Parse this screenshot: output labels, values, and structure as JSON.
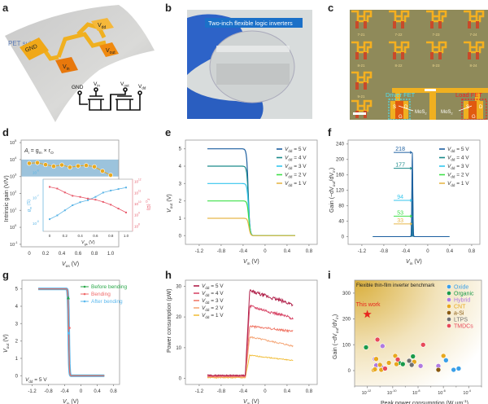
{
  "figure": {
    "panels": {
      "a": {
        "letter": "a",
        "substrate_label": "PET sub",
        "pads": [
          "GND",
          "V_in",
          "V_dd",
          "V_out"
        ],
        "circuit_terminals": [
          "GND",
          "V_in",
          "V_out",
          "V_dd"
        ]
      },
      "b": {
        "letter": "b",
        "caption": "Two-inch flexible logic inverters"
      },
      "c": {
        "letter": "c",
        "device_labels_row1": [
          "7-21",
          "7-22",
          "7-23",
          "7-24"
        ],
        "device_labels_row2": [
          "8-21",
          "8-22",
          "8-23",
          "8-24"
        ],
        "device_labels_row3": [
          "9-21"
        ],
        "driver_label": "Driver FET",
        "load_label": "Load FET",
        "material_label": "MoS2",
        "terminal_labels": [
          "S",
          "D",
          "G"
        ]
      },
      "d": {
        "letter": "d"
      },
      "e": {
        "letter": "e"
      },
      "f": {
        "letter": "f"
      },
      "g": {
        "letter": "g"
      },
      "h": {
        "letter": "h"
      },
      "i": {
        "letter": "i"
      }
    }
  },
  "chart_data": [
    {
      "id": "d",
      "type": "scatter",
      "title": "",
      "annotation": "A_i = g_m × r_O",
      "xlabel": "V_gs (V)",
      "ylabel": "Intrinsic gain (V/V)",
      "yscale": "log",
      "ylim_exp": [
        -1,
        5
      ],
      "ytick_labels": [
        "10^-1",
        "10^0",
        "10^1",
        "10^2",
        "10^3",
        "10^4",
        "10^5"
      ],
      "xlim": [
        -0.1,
        1.1
      ],
      "xtick_labels": [
        "0",
        "0.2",
        "0.4",
        "0.6",
        "0.8",
        "1.0"
      ],
      "shaded_band": [
        1000,
        10000
      ],
      "shaded_color": "#9cc3dc",
      "series": [
        {
          "name": "Intrinsic gain",
          "color": "#e8a81e",
          "x": [
            0,
            0.1,
            0.2,
            0.3,
            0.4,
            0.5,
            0.6,
            0.7,
            0.8,
            0.9,
            1.0
          ],
          "y": [
            6000,
            6500,
            5000,
            4000,
            4800,
            3500,
            4200,
            4500,
            3800,
            2100,
            1200
          ]
        }
      ],
      "inset": {
        "xlabel": "V_gs (V)",
        "xtick_labels": [
          "0",
          "0.2",
          "0.4",
          "0.6",
          "0.8",
          "1.0"
        ],
        "left_ylabel": "g_m (S)",
        "left_ytick_labels": [
          "10^-8",
          "10^-7",
          "10^-6"
        ],
        "right_ylabel": "r_O (Ω)",
        "right_ytick_labels": [
          "10^8",
          "10^9",
          "10^10",
          "10^11",
          "10^12"
        ],
        "series": [
          {
            "name": "g_m",
            "color": "#5ab4e6",
            "axis": "left",
            "x": [
              0,
              0.1,
              0.2,
              0.3,
              0.4,
              0.5,
              0.6,
              0.7,
              0.8,
              0.9,
              1.0
            ],
            "y_exp": [
              -7.85,
              -7.7,
              -7.5,
              -7.3,
              -7.18,
              -7.1,
              -6.97,
              -6.8,
              -6.72,
              -6.66,
              -6.6
            ]
          },
          {
            "name": "r_O",
            "color": "#e8596a",
            "axis": "right",
            "x": [
              0,
              0.1,
              0.2,
              0.3,
              0.4,
              0.5,
              0.6,
              0.7,
              0.8,
              0.9,
              1.0
            ],
            "y_exp": [
              11.5,
              11.35,
              11.0,
              10.7,
              10.6,
              10.45,
              10.35,
              10.15,
              9.9,
              9.55,
              9.2
            ]
          }
        ]
      }
    },
    {
      "id": "e",
      "type": "line",
      "xlabel": "V_in (V)",
      "ylabel": "V_out (V)",
      "xlim": [
        -1.45,
        0.95
      ],
      "ylim": [
        -0.5,
        5.5
      ],
      "xtick_labels": [
        "-1.2",
        "-0.8",
        "-0.4",
        "0",
        "0.4",
        "0.8"
      ],
      "xticks": [
        -1.2,
        -0.8,
        -0.4,
        0,
        0.4,
        0.8
      ],
      "ytick_labels": [
        "0",
        "1",
        "2",
        "3",
        "4",
        "5"
      ],
      "yticks": [
        0,
        1,
        2,
        3,
        4,
        5
      ],
      "legend_position": "top-right",
      "series": [
        {
          "name": "V_dd = 5 V",
          "color": "#1c5fa0",
          "vdd": 5
        },
        {
          "name": "V_dd = 4 V",
          "color": "#1a8a8a",
          "vdd": 4
        },
        {
          "name": "V_dd = 3 V",
          "color": "#35c6ee",
          "vdd": 3
        },
        {
          "name": "V_dd = 2 V",
          "color": "#3fe04a",
          "vdd": 2
        },
        {
          "name": "V_dd = 1 V",
          "color": "#e6b84a",
          "vdd": 1
        }
      ],
      "x_start": -1.05,
      "x_end": 0.55,
      "switch_v": -0.3
    },
    {
      "id": "f",
      "type": "line",
      "xlabel": "V_in (V)",
      "ylabel": "Gain (−dV_out/dV_in)",
      "xlim": [
        -1.45,
        0.95
      ],
      "ylim": [
        -20,
        250
      ],
      "xtick_labels": [
        "-1.2",
        "-0.8",
        "-0.4",
        "0",
        "0.4",
        "0.8"
      ],
      "xticks": [
        -1.2,
        -0.8,
        -0.4,
        0,
        0.4,
        0.8
      ],
      "ytick_labels": [
        "0",
        "40",
        "80",
        "120",
        "160",
        "200",
        "240"
      ],
      "yticks": [
        0,
        40,
        80,
        120,
        160,
        200,
        240
      ],
      "legend_position": "top-right",
      "series": [
        {
          "name": "V_dd = 5 V",
          "color": "#1c5fa0",
          "peak": 218
        },
        {
          "name": "V_dd = 4 V",
          "color": "#1a8a8a",
          "peak": 177
        },
        {
          "name": "V_dd = 3 V",
          "color": "#35c6ee",
          "peak": 94
        },
        {
          "name": "V_dd = 2 V",
          "color": "#3fe04a",
          "peak": 53
        },
        {
          "name": "V_dd = 1 V",
          "color": "#e6b84a",
          "peak": 33
        }
      ],
      "peak_labels": [
        "218",
        "177",
        "94",
        "53",
        "33"
      ],
      "x_start": -1.0,
      "x_end": 0.4,
      "peak_v": -0.28
    },
    {
      "id": "g",
      "type": "line",
      "xlabel": "V_in (V)",
      "ylabel": "V_out (V)",
      "annotation": "V_dd = 5 V",
      "xlim": [
        -1.45,
        0.95
      ],
      "ylim": [
        -0.5,
        5.5
      ],
      "xtick_labels": [
        "-1.2",
        "-0.8",
        "-0.4",
        "0",
        "0.4",
        "0.8"
      ],
      "xticks": [
        -1.2,
        -0.8,
        -0.4,
        0,
        0.4,
        0.8
      ],
      "ytick_labels": [
        "0",
        "1",
        "2",
        "3",
        "4",
        "5"
      ],
      "yticks": [
        0,
        1,
        2,
        3,
        4,
        5
      ],
      "legend_position": "top-right",
      "series": [
        {
          "name": "Before bending",
          "color": "#2aa84a",
          "marker": "triangle"
        },
        {
          "name": "Bending",
          "color": "#f06a6a",
          "marker": "circle"
        },
        {
          "name": "After bending",
          "color": "#5ab8ee",
          "marker": "square"
        }
      ],
      "x_start": -1.05,
      "x_end": 0.58,
      "switch_v": -0.3
    },
    {
      "id": "h",
      "type": "line",
      "xlabel": "V_in (V)",
      "ylabel": "Power consumption (pW)",
      "xlim": [
        -1.45,
        0.95
      ],
      "ylim": [
        -2,
        32
      ],
      "xtick_labels": [
        "-1.2",
        "-0.8",
        "-0.4",
        "0",
        "0.4",
        "0.8"
      ],
      "xticks": [
        -1.2,
        -0.8,
        -0.4,
        0,
        0.4,
        0.8
      ],
      "ytick_labels": [
        "0",
        "10",
        "20",
        "30"
      ],
      "yticks": [
        0,
        10,
        20,
        30
      ],
      "legend_position": "top-left",
      "series": [
        {
          "name": "V_dd = 5 V",
          "color": "#b0204a",
          "low": 1.0,
          "peak": 28.5,
          "end": 24
        },
        {
          "name": "V_dd = 4 V",
          "color": "#d84a6a",
          "low": 0.8,
          "peak": 23.5,
          "end": 19.5
        },
        {
          "name": "V_dd = 3 V",
          "color": "#f07a6a",
          "low": 0.6,
          "peak": 17,
          "end": 15.3
        },
        {
          "name": "V_dd = 2 V",
          "color": "#f5a87a",
          "low": 0.4,
          "peak": 13.5,
          "end": 10.5
        },
        {
          "name": "V_dd = 1 V",
          "color": "#f2c040",
          "low": 0.2,
          "peak": 7.5,
          "end": 5.8
        }
      ],
      "x_start": -1.05,
      "x_end": 0.52
    },
    {
      "id": "i",
      "type": "scatter",
      "title": "Flexible thin-film inverter benchmark",
      "xlabel": "Peak power consumption (W μm^-1)",
      "ylabel": "Gain (−dV_out/dV_in)",
      "xscale": "log",
      "xlim_exp": [
        -13,
        -3
      ],
      "xtick_labels": [
        "10^-12",
        "10^-10",
        "10^-8",
        "10^-6",
        "10^-4"
      ],
      "xticks_exp": [
        -12,
        -10,
        -8,
        -6,
        -4
      ],
      "ylim": [
        -60,
        350
      ],
      "ytick_labels": [
        "0",
        "100",
        "200",
        "300"
      ],
      "yticks": [
        0,
        100,
        200,
        300
      ],
      "legend_position": "top-right",
      "highlight": {
        "label": "This work",
        "x_exp": -12,
        "y": 218,
        "color": "#e8261e"
      },
      "series": [
        {
          "name": "Oxide",
          "color": "#3a9fe8",
          "points": [
            [
              -5.8,
              40
            ],
            [
              -5.2,
              3
            ],
            [
              -4.8,
              8
            ]
          ]
        },
        {
          "name": "Organic",
          "color": "#1a9a4a",
          "points": [
            [
              -12.1,
              90
            ],
            [
              -9.5,
              30
            ],
            [
              -9.2,
              25
            ],
            [
              -8.4,
              55
            ]
          ]
        },
        {
          "name": "Hybrid",
          "color": "#b07ae0",
          "points": [
            [
              -10.8,
              95
            ],
            [
              -11.4,
              45
            ],
            [
              -11.3,
              20
            ],
            [
              -10.9,
              15
            ],
            [
              -7.8,
              18
            ],
            [
              -6.4,
              18
            ]
          ]
        },
        {
          "name": "CNT",
          "color": "#e8a81e",
          "points": [
            [
              -11.5,
              2
            ],
            [
              -11.4,
              5
            ],
            [
              -11.3,
              45
            ],
            [
              -11.0,
              22
            ],
            [
              -10.9,
              3
            ],
            [
              -10.3,
              30
            ],
            [
              -9.8,
              57
            ],
            [
              -9.7,
              25
            ],
            [
              -8.3,
              34
            ],
            [
              -6.0,
              57
            ]
          ]
        },
        {
          "name": "a-Si",
          "color": "#8a5a10",
          "points": [
            [
              -6.4,
              3
            ]
          ]
        },
        {
          "name": "LTPS",
          "color": "#707070",
          "points": [
            [
              -8.7,
              38
            ],
            [
              -8.5,
              22
            ]
          ]
        },
        {
          "name": "TMDCs",
          "color": "#e84a5a",
          "points": [
            [
              -11.2,
              120
            ],
            [
              -10.6,
              8
            ],
            [
              -9.6,
              43
            ],
            [
              -7.6,
              100
            ]
          ]
        }
      ]
    }
  ]
}
